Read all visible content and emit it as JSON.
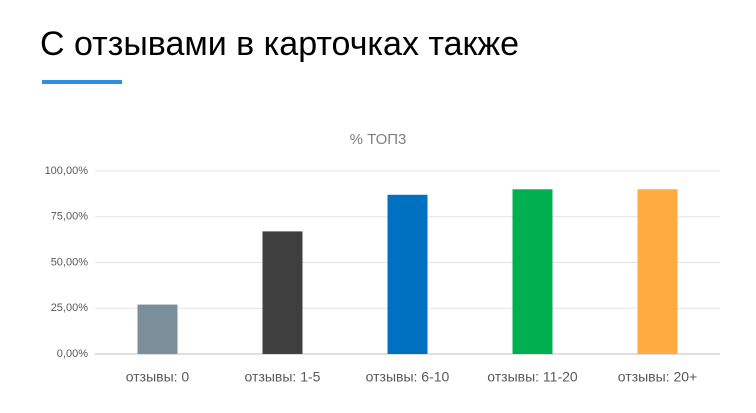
{
  "header": {
    "title": "С отзывами в карточках также"
  },
  "chart_data": {
    "type": "bar",
    "title": "% ТОП3",
    "categories": [
      "отзывы: 0",
      "отзывы: 1-5",
      "отзывы: 6-10",
      "отзывы: 11-20",
      "отзывы: 20+"
    ],
    "values": [
      27,
      67,
      87,
      90,
      90
    ],
    "colors": [
      "#7b8f9a",
      "#3f3f3f",
      "#0070c0",
      "#00b050",
      "#ffab40"
    ],
    "ylim": [
      0,
      100
    ],
    "yticks": [
      {
        "value": 0,
        "label": "0,00%"
      },
      {
        "value": 25,
        "label": "25,00%"
      },
      {
        "value": 50,
        "label": "50,00%"
      },
      {
        "value": 75,
        "label": "75,00%"
      },
      {
        "value": 100,
        "label": "100,00%"
      }
    ],
    "grid": true
  }
}
